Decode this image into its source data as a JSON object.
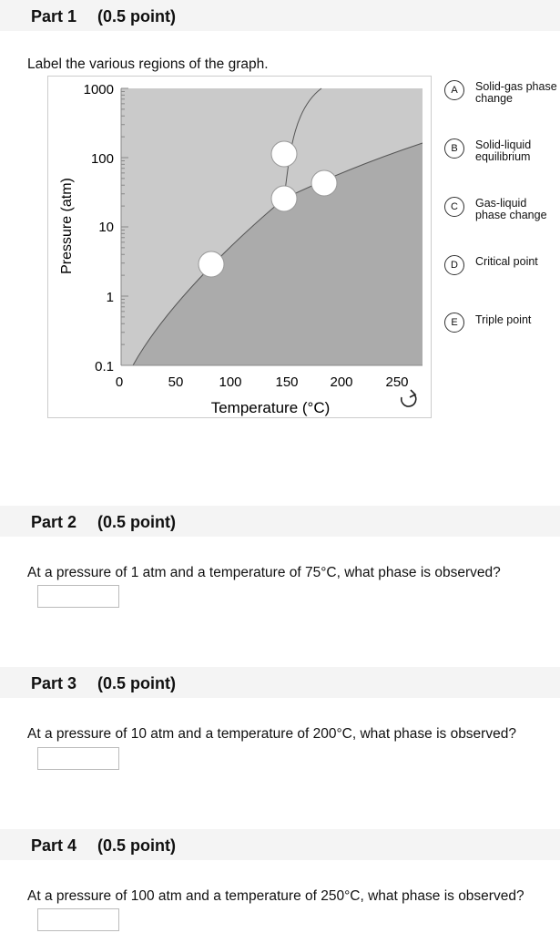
{
  "parts": [
    {
      "title": "Part 1",
      "points": "(0.5 point)",
      "prompt": "Label the various regions of the graph.",
      "graph": {
        "y_label": "Pressure (atm)",
        "x_label": "Temperature (°C)",
        "y_ticks": [
          "1000",
          "100",
          "10",
          "1",
          "0.1"
        ],
        "x_ticks": [
          "0",
          "50",
          "100",
          "150",
          "200",
          "250"
        ]
      },
      "options": [
        {
          "letter": "A",
          "label": "Solid-gas phase change"
        },
        {
          "letter": "B",
          "label": "Solid-liquid equilibrium"
        },
        {
          "letter": "C",
          "label": "Gas-liquid phase change"
        },
        {
          "letter": "D",
          "label": "Critical point"
        },
        {
          "letter": "E",
          "label": "Triple point"
        }
      ]
    },
    {
      "title": "Part 2",
      "points": "(0.5 point)",
      "prompt": "At a pressure of 1 atm and a temperature of 75°C, what phase is observed?"
    },
    {
      "title": "Part 3",
      "points": "(0.5 point)",
      "prompt": "At a pressure of 10 atm and a temperature of 200°C, what phase is observed?"
    },
    {
      "title": "Part 4",
      "points": "(0.5 point)",
      "prompt": "At a pressure of 100 atm and a temperature of 250°C, what phase is observed?"
    }
  ]
}
